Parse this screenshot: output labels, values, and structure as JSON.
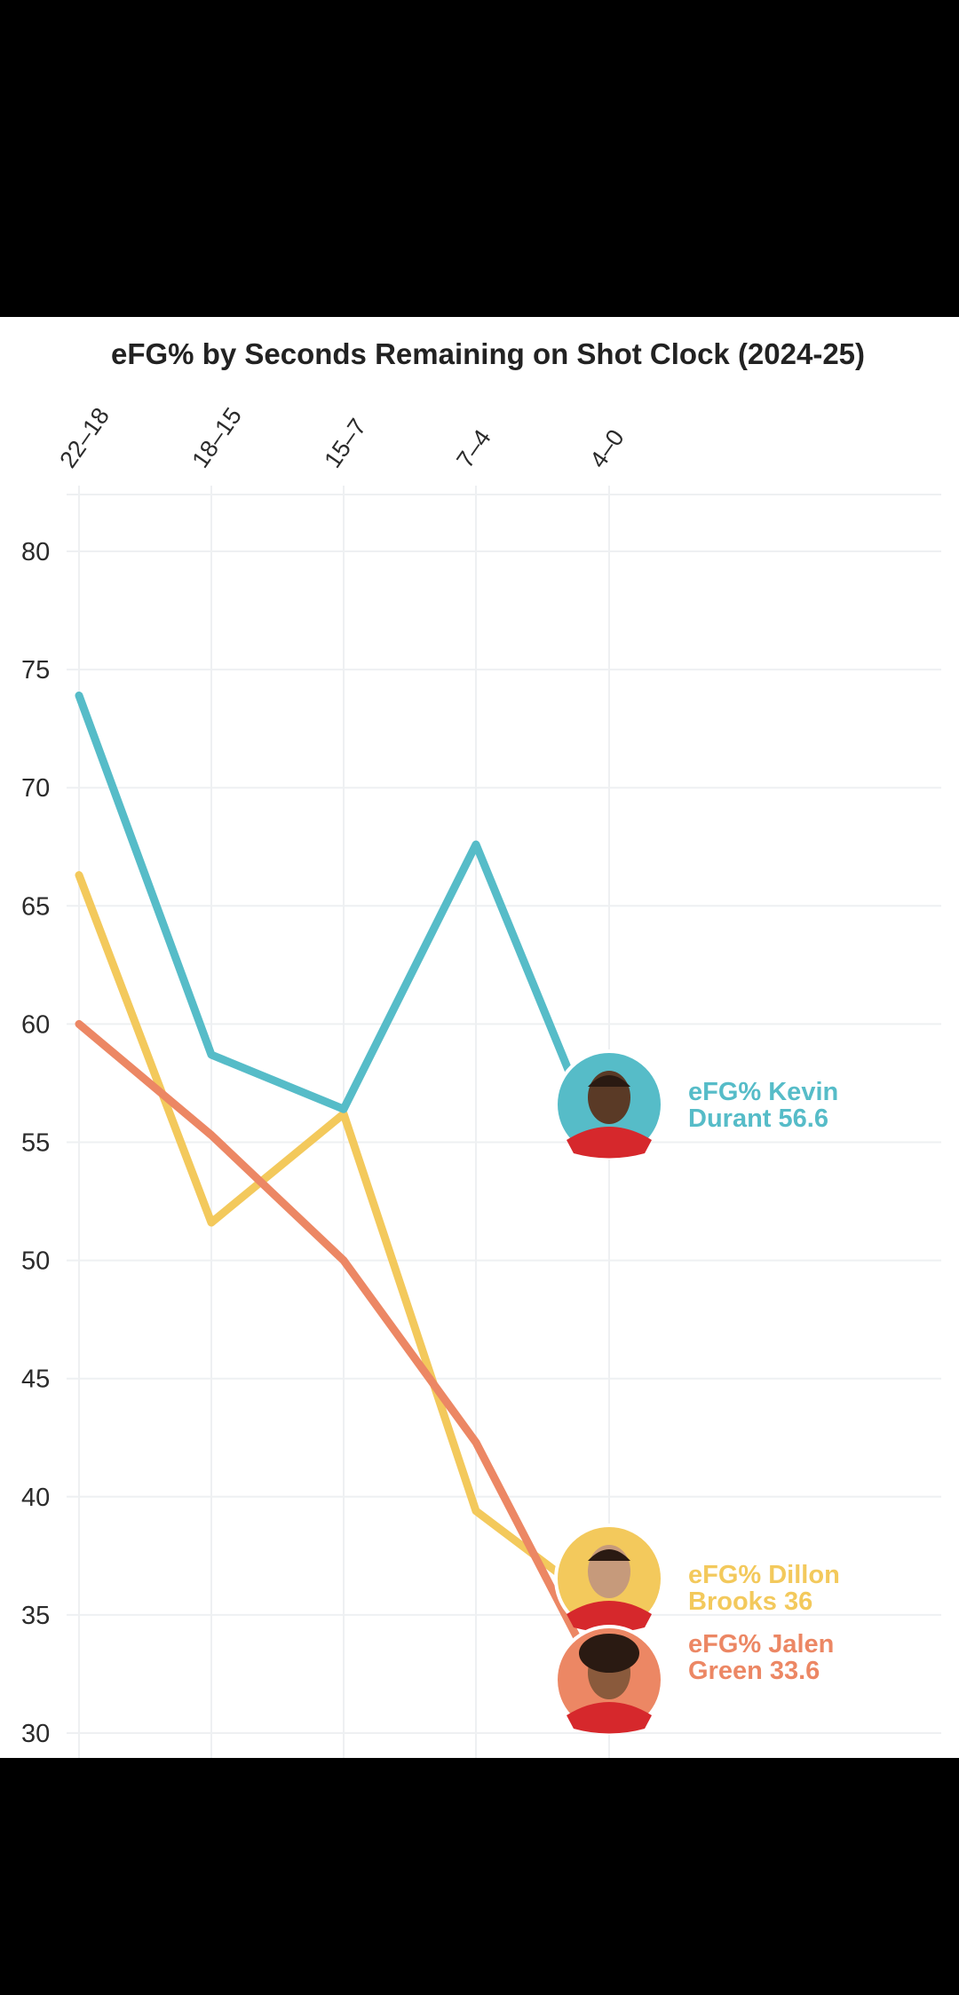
{
  "colors": {
    "durant": "#56bcc8",
    "brooks": "#f3c95c",
    "green": "#ec8764",
    "card_bg": "#ffffff",
    "page_bg": "#000000"
  },
  "chart_data": {
    "type": "line",
    "title": "eFG% by Seconds Remaining on Shot Clock (2024-25)",
    "categories": [
      "22–18",
      "18–15",
      "15–7",
      "7–4",
      "4–0"
    ],
    "y_ticks": [
      "80",
      "75",
      "70",
      "65",
      "60",
      "55",
      "50",
      "45",
      "40",
      "35",
      "30"
    ],
    "ylim": [
      30,
      80
    ],
    "grid": true,
    "series": [
      {
        "key": "durant",
        "values": [
          73.9,
          58.7,
          56.4,
          67.6,
          56.6
        ],
        "color": "#56bcc8",
        "callout": [
          "eFG% Kevin",
          "Durant 56.6"
        ],
        "avatar": "kevin-durant-avatar"
      },
      {
        "key": "brooks",
        "values": [
          66.3,
          51.6,
          56.2,
          39.4,
          36.0
        ],
        "color": "#f3c95c",
        "callout": [
          "eFG% Dillon",
          "Brooks 36"
        ],
        "avatar": "dillon-brooks-avatar"
      },
      {
        "key": "green",
        "values": [
          60.0,
          55.3,
          50.0,
          42.3,
          33.6
        ],
        "color": "#ec8764",
        "callout": [
          "eFG% Jalen",
          "Green 33.6"
        ],
        "avatar": "jalen-green-avatar"
      }
    ]
  }
}
